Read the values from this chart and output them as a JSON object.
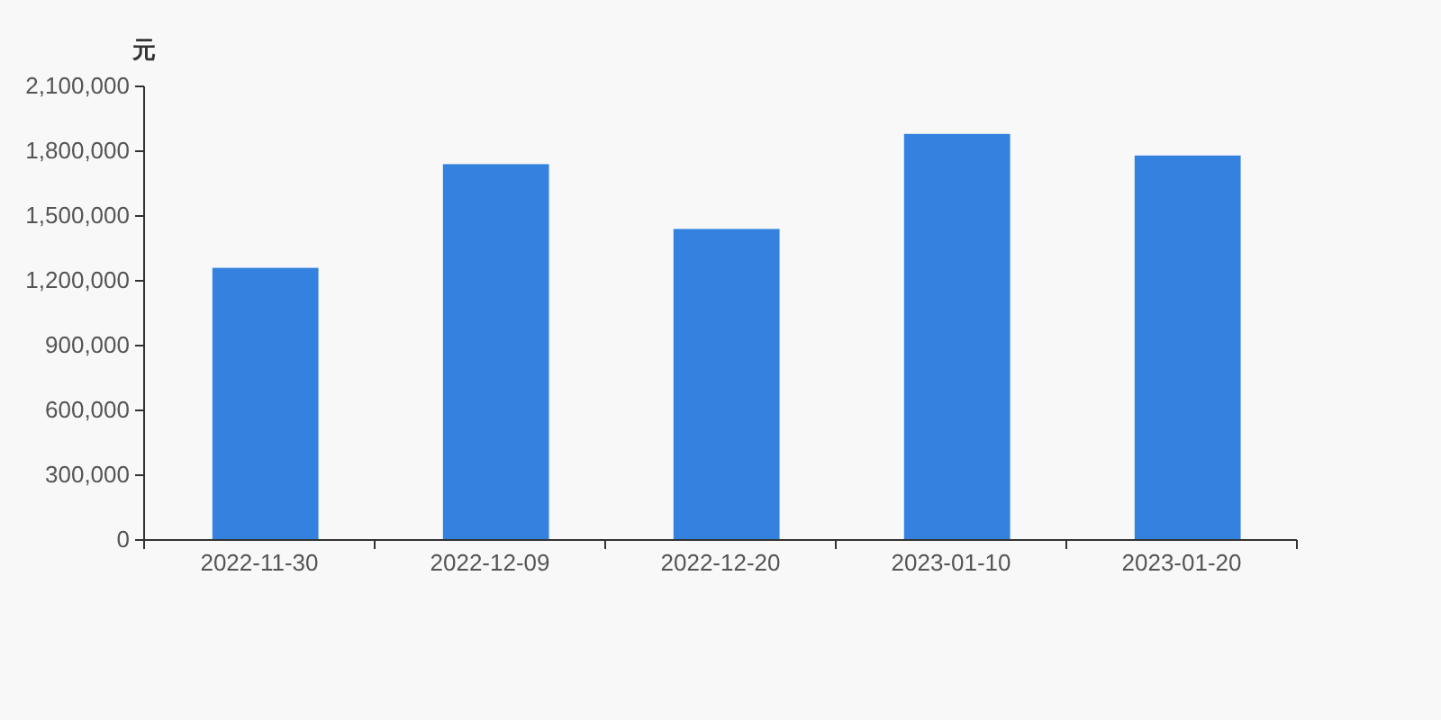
{
  "chart_data": {
    "type": "bar",
    "ylabel": "元",
    "categories": [
      "2022-11-30",
      "2022-12-09",
      "2022-12-20",
      "2023-01-10",
      "2023-01-20"
    ],
    "values": [
      1260000,
      1740000,
      1440000,
      1880000,
      1780000
    ],
    "color": "#3481e0",
    "ylim": [
      0,
      2100000
    ],
    "yticks": [
      {
        "value": 0,
        "label": "0"
      },
      {
        "value": 300000,
        "label": "300,000"
      },
      {
        "value": 600000,
        "label": "600,000"
      },
      {
        "value": 900000,
        "label": "900,000"
      },
      {
        "value": 1200000,
        "label": "1,200,000"
      },
      {
        "value": 1500000,
        "label": "1,500,000"
      },
      {
        "value": 1800000,
        "label": "1,800,000"
      },
      {
        "value": 2100000,
        "label": "2,100,000"
      }
    ],
    "grid": false
  }
}
